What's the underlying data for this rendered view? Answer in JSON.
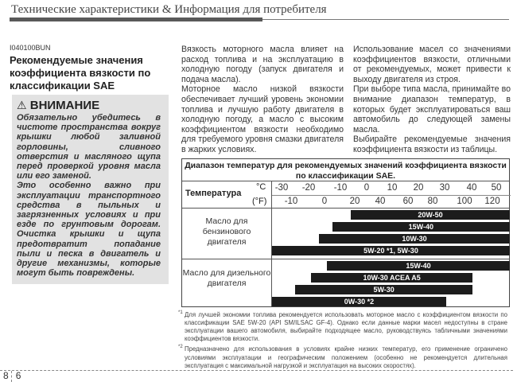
{
  "header": {
    "title": "Технические характеристики & Информация для потребителя"
  },
  "section": {
    "code": "I040100BUN",
    "title": "Рекомендуемые значения коэффициента вязкости по классификации SAE"
  },
  "warning": {
    "heading": "ВНИМАНИЕ",
    "icon": "warning-triangle-icon",
    "text1": "Обязательно убедитесь в чистоте пространства вокруг крышки любой заливной горловины, сливного отверстия и масляного щупа перед проверкой уровня масла или его заменой.",
    "text2": "Это особенно важно при эксплуатации транспортного средства в пыльных и загрязненных условиях и при езде по грунтовым дорогам. Очистка крышки и щупа предотвратит попадание пыли и песка в двигатель и другие механизмы, которые могут быть повреждены."
  },
  "middle": {
    "p1": "Вязкость моторного масла влияет на расход топлива и на эксплуатацию в холодную погоду (запуск двигателя и подача масла).",
    "p2": "Моторное масло низкой вязкости обеспечивает лучший уровень экономии топлива и лучшую работу двигателя в холодную погоду, а масло с высоким коэффициентом вязкости необходимо для требуемого уровня смазки двигателя в жарких условиях."
  },
  "right": {
    "p1": "Использование масел со значениями коэффициентов вязкости, отличными от рекомендуемых, может привести к выходу двигателя из строя.",
    "p2": "При выборе типа масла, принимайте во внимание диапазон температур, в которых будет эксплуатироваться ваш автомобиль до следующей замены масла.",
    "p3": "Выбирайте рекомендуемые значения коэффициента вязкости из таблицы."
  },
  "table": {
    "title": "Диапазон температур для рекомендуемых значений коэффициента вязкости по классификации SAE.",
    "temp_label": "Температура",
    "unit_c": "°C",
    "unit_f": "(°F)",
    "ticks_c": [
      "-30",
      "-20",
      "-10",
      "0",
      "10",
      "20",
      "30",
      "40",
      "50"
    ],
    "ticks_f": [
      "-10",
      "0",
      "20",
      "40",
      "60",
      "80",
      "100",
      "120"
    ],
    "petrol_label": "Масло для бензинового двигателя",
    "diesel_label": "Масло для дизельного двигателя",
    "bar_color": "#1c1c1c",
    "petrol": [
      {
        "name": "20W-50",
        "from_c": -6,
        "to_c": "open"
      },
      {
        "name": "15W-40",
        "from_c": -13,
        "to_c": "open"
      },
      {
        "name": "10W-30",
        "from_c": -18,
        "to_c": "open"
      },
      {
        "name": "5W-20 *1, 5W-30",
        "from_c": "open",
        "to_c": "open"
      }
    ],
    "diesel": [
      {
        "name": "15W-40",
        "from_c": -15,
        "to_c": "open"
      },
      {
        "name": "10W-30 ACEA A5",
        "from_c": -21,
        "to_c": 40
      },
      {
        "name": "5W-30",
        "from_c": -27,
        "to_c": 40
      },
      {
        "name": "0W-30 *2",
        "from_c": "open",
        "to_c": 30
      }
    ]
  },
  "footnotes": [
    {
      "mark": "*1",
      "text": "Для лучшей экономии топлива рекомендуется использовать моторное масло с коэффициентом вязкости по классификации SAE 5W-20 (API SM/ILSAC GF-4). Однако если данные марки масел недоступны в стране эксплуатации вашего автомобиля, выбирайте подходящее масло, руководствуясь табличными значениями коэффициентов вязкости."
    },
    {
      "mark": "*2",
      "text": "Предназначено для использования в условиях крайне низких температур, его применение ограничено условиями эксплуатации и географическим положением (особенно не рекомендуется длительная эксплуатация с максимальной нагрузкой и эксплуатация на высоких скоростях)."
    }
  ],
  "page": {
    "chapter": "8",
    "number": "6"
  }
}
